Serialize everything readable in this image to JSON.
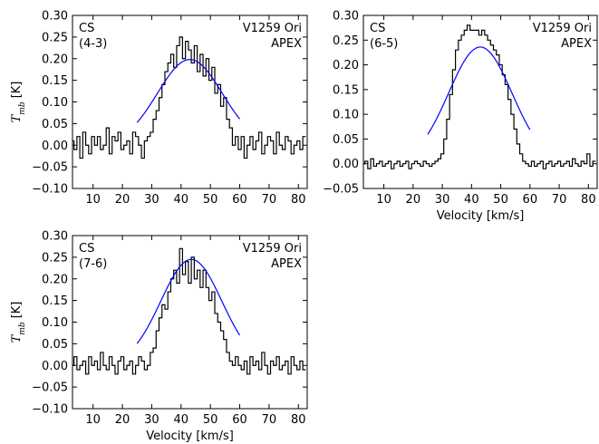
{
  "colors": {
    "observed": "#000000",
    "fit": "#0000ff"
  },
  "chart_data": [
    {
      "type": "line",
      "title": "",
      "annotation_left": [
        "CS",
        "(4-3)"
      ],
      "annotation_right": [
        "V1259 Ori",
        "APEX"
      ],
      "xlabel": "",
      "ylabel": "T_mb [K]",
      "ylabel_main": "T",
      "ylabel_sub": "mb",
      "ylabel_unit": " [K]",
      "xlim": [
        3,
        83
      ],
      "ylim": [
        -0.1,
        0.3
      ],
      "xticks": [
        10,
        20,
        30,
        40,
        50,
        60,
        70,
        80
      ],
      "yticks": [
        -0.1,
        -0.05,
        0.0,
        0.05,
        0.1,
        0.15,
        0.2,
        0.25,
        0.3
      ],
      "ytick_labels": [
        "−0.10",
        "−0.05",
        "0.00",
        "0.05",
        "0.10",
        "0.15",
        "0.20",
        "0.25",
        "0.30"
      ],
      "grid": false,
      "series": [
        {
          "kind": "step",
          "x": [
            3,
            4,
            5,
            6,
            7,
            8,
            9,
            10,
            11,
            12,
            13,
            14,
            15,
            16,
            17,
            18,
            19,
            20,
            21,
            22,
            23,
            24,
            25,
            26,
            27,
            28,
            29,
            30,
            31,
            32,
            33,
            34,
            35,
            36,
            37,
            38,
            39,
            40,
            41,
            42,
            43,
            44,
            45,
            46,
            47,
            48,
            49,
            50,
            51,
            52,
            53,
            54,
            55,
            56,
            57,
            58,
            59,
            60,
            61,
            62,
            63,
            64,
            65,
            66,
            67,
            68,
            69,
            70,
            71,
            72,
            73,
            74,
            75,
            76,
            77,
            78,
            79,
            80,
            81,
            82
          ],
          "y": [
            0.01,
            -0.01,
            0.02,
            -0.03,
            0.03,
            0.0,
            -0.02,
            0.02,
            0.0,
            0.02,
            -0.01,
            0.0,
            0.04,
            -0.02,
            0.02,
            0.01,
            0.03,
            -0.01,
            0.0,
            0.01,
            -0.02,
            0.03,
            0.02,
            0.0,
            -0.03,
            0.01,
            0.02,
            0.03,
            0.06,
            0.08,
            0.11,
            0.14,
            0.17,
            0.19,
            0.21,
            0.18,
            0.23,
            0.25,
            0.2,
            0.24,
            0.22,
            0.19,
            0.23,
            0.17,
            0.21,
            0.16,
            0.2,
            0.15,
            0.18,
            0.12,
            0.14,
            0.09,
            0.11,
            0.06,
            0.04,
            0.0,
            0.02,
            -0.01,
            0.02,
            -0.03,
            0.0,
            0.02,
            -0.01,
            0.01,
            0.03,
            -0.02,
            0.0,
            0.02,
            0.01,
            -0.02,
            0.03,
            0.0,
            -0.01,
            0.02,
            0.01,
            -0.02,
            0.0,
            0.01,
            -0.01,
            0.02
          ]
        },
        {
          "kind": "gaussian_fit",
          "amplitude": 0.198,
          "center": 43.0,
          "width": 26.0,
          "x_range": [
            25,
            60
          ]
        }
      ]
    },
    {
      "type": "line",
      "title": "",
      "annotation_left": [
        "CS",
        "(6-5)"
      ],
      "annotation_right": [
        "V1259 Ori",
        "APEX"
      ],
      "xlabel": "Velocity [km/s]",
      "ylabel": "",
      "xlim": [
        3,
        83
      ],
      "ylim": [
        -0.05,
        0.3
      ],
      "xticks": [
        10,
        20,
        30,
        40,
        50,
        60,
        70,
        80
      ],
      "yticks": [
        -0.05,
        0.0,
        0.05,
        0.1,
        0.15,
        0.2,
        0.25,
        0.3
      ],
      "ytick_labels": [
        "−0.05",
        "0.00",
        "0.05",
        "0.10",
        "0.15",
        "0.20",
        "0.25",
        "0.30"
      ],
      "grid": false,
      "series": [
        {
          "kind": "step",
          "x": [
            3,
            4,
            5,
            6,
            7,
            8,
            9,
            10,
            11,
            12,
            13,
            14,
            15,
            16,
            17,
            18,
            19,
            20,
            21,
            22,
            23,
            24,
            25,
            26,
            27,
            28,
            29,
            30,
            31,
            32,
            33,
            34,
            35,
            36,
            37,
            38,
            39,
            40,
            41,
            42,
            43,
            44,
            45,
            46,
            47,
            48,
            49,
            50,
            51,
            52,
            53,
            54,
            55,
            56,
            57,
            58,
            59,
            60,
            61,
            62,
            63,
            64,
            65,
            66,
            67,
            68,
            69,
            70,
            71,
            72,
            73,
            74,
            75,
            76,
            77,
            78,
            79,
            80,
            81,
            82
          ],
          "y": [
            0.0,
            0.005,
            -0.01,
            0.01,
            -0.005,
            0.0,
            0.005,
            -0.005,
            0.0,
            0.005,
            -0.01,
            0.0,
            0.005,
            -0.005,
            0.0,
            0.005,
            -0.01,
            0.0,
            0.005,
            0.0,
            -0.005,
            0.005,
            0.0,
            -0.005,
            0.0,
            0.005,
            0.01,
            0.02,
            0.05,
            0.09,
            0.14,
            0.19,
            0.23,
            0.25,
            0.26,
            0.27,
            0.28,
            0.27,
            0.27,
            0.27,
            0.26,
            0.27,
            0.26,
            0.25,
            0.24,
            0.23,
            0.22,
            0.2,
            0.18,
            0.16,
            0.13,
            0.1,
            0.07,
            0.04,
            0.02,
            0.005,
            0.0,
            -0.005,
            0.005,
            -0.005,
            0.0,
            0.005,
            -0.01,
            0.0,
            0.005,
            -0.005,
            0.0,
            0.005,
            -0.005,
            0.0,
            0.005,
            -0.005,
            0.01,
            0.0,
            -0.005,
            0.005,
            0.0,
            0.02,
            -0.005,
            0.005
          ]
        },
        {
          "kind": "gaussian_fit",
          "amplitude": 0.236,
          "center": 43.0,
          "width": 25.5,
          "x_range": [
            25,
            60
          ]
        }
      ]
    },
    {
      "type": "line",
      "title": "",
      "annotation_left": [
        "CS",
        "(7-6)"
      ],
      "annotation_right": [
        "V1259 Ori",
        "APEX"
      ],
      "xlabel": "Velocity [km/s]",
      "ylabel": "T_mb [K]",
      "ylabel_main": "T",
      "ylabel_sub": "mb",
      "ylabel_unit": " [K]",
      "xlim": [
        3,
        83
      ],
      "ylim": [
        -0.1,
        0.3
      ],
      "xticks": [
        10,
        20,
        30,
        40,
        50,
        60,
        70,
        80
      ],
      "yticks": [
        -0.1,
        -0.05,
        0.0,
        0.05,
        0.1,
        0.15,
        0.2,
        0.25,
        0.3
      ],
      "ytick_labels": [
        "−0.10",
        "−0.05",
        "0.00",
        "0.05",
        "0.10",
        "0.15",
        "0.20",
        "0.25",
        "0.30"
      ],
      "grid": false,
      "series": [
        {
          "kind": "step",
          "x": [
            3,
            4,
            5,
            6,
            7,
            8,
            9,
            10,
            11,
            12,
            13,
            14,
            15,
            16,
            17,
            18,
            19,
            20,
            21,
            22,
            23,
            24,
            25,
            26,
            27,
            28,
            29,
            30,
            31,
            32,
            33,
            34,
            35,
            36,
            37,
            38,
            39,
            40,
            41,
            42,
            43,
            44,
            45,
            46,
            47,
            48,
            49,
            50,
            51,
            52,
            53,
            54,
            55,
            56,
            57,
            58,
            59,
            60,
            61,
            62,
            63,
            64,
            65,
            66,
            67,
            68,
            69,
            70,
            71,
            72,
            73,
            74,
            75,
            76,
            77,
            78,
            79,
            80,
            81,
            82
          ],
          "y": [
            0.0,
            0.02,
            -0.01,
            0.0,
            0.01,
            -0.02,
            0.02,
            0.0,
            0.01,
            -0.01,
            0.03,
            0.0,
            -0.01,
            0.02,
            0.0,
            -0.02,
            0.01,
            0.02,
            -0.01,
            0.0,
            0.01,
            -0.02,
            0.0,
            0.02,
            0.01,
            -0.01,
            0.0,
            0.03,
            0.04,
            0.08,
            0.11,
            0.14,
            0.13,
            0.17,
            0.2,
            0.22,
            0.19,
            0.27,
            0.21,
            0.24,
            0.19,
            0.25,
            0.2,
            0.22,
            0.18,
            0.22,
            0.18,
            0.15,
            0.17,
            0.12,
            0.1,
            0.08,
            0.06,
            0.03,
            0.01,
            0.0,
            0.02,
            0.0,
            -0.01,
            0.01,
            -0.02,
            0.02,
            0.0,
            0.01,
            -0.01,
            0.03,
            0.0,
            -0.02,
            0.01,
            0.0,
            0.02,
            -0.01,
            0.0,
            0.01,
            -0.02,
            0.02,
            0.0,
            -0.01,
            0.01,
            -0.01
          ]
        },
        {
          "kind": "gaussian_fit",
          "amplitude": 0.245,
          "center": 43.5,
          "width": 24.5,
          "x_range": [
            25,
            60
          ]
        }
      ]
    }
  ]
}
